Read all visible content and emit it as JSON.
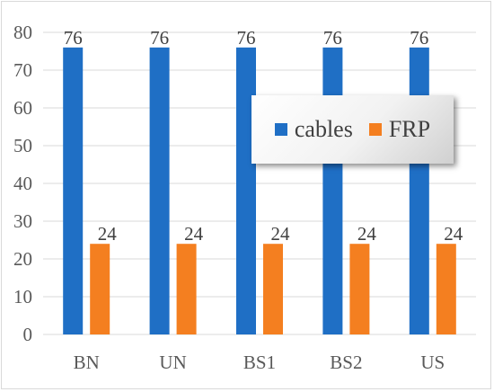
{
  "chart_data": {
    "type": "bar",
    "categories": [
      "BN",
      "UN",
      "BS1",
      "BS2",
      "US"
    ],
    "series": [
      {
        "name": "cables",
        "values": [
          76,
          76,
          76,
          76,
          76
        ],
        "color": "#1f6fc5"
      },
      {
        "name": "FRP",
        "values": [
          24,
          24,
          24,
          24,
          24
        ],
        "color": "#f47f20"
      }
    ],
    "ylim": [
      0,
      80
    ],
    "yticks": [
      0,
      10,
      20,
      30,
      40,
      50,
      60,
      70,
      80
    ],
    "grid": true,
    "legend_position": "right-center",
    "data_labels": true
  }
}
